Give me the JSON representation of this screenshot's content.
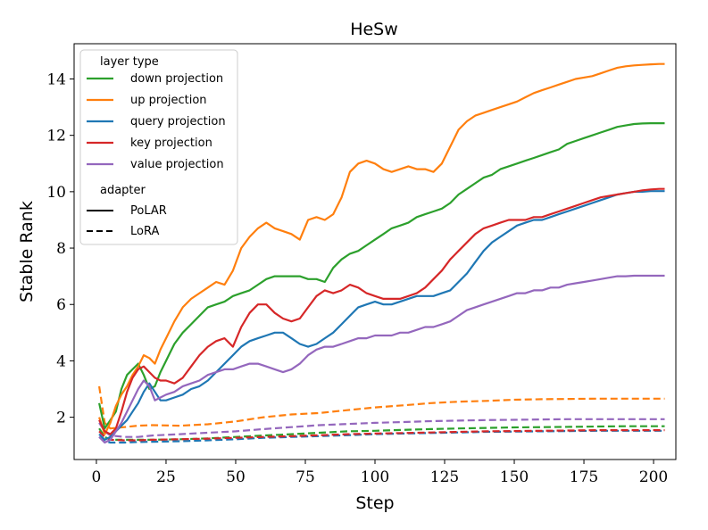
{
  "chart_data": {
    "type": "line",
    "title": "HeSw",
    "xlabel": "Step",
    "ylabel": "Stable Rank",
    "xlim": [
      -8,
      208
    ],
    "ylim": [
      0.5,
      15.25
    ],
    "xticks": [
      0,
      25,
      50,
      75,
      100,
      125,
      150,
      175,
      200
    ],
    "xtick_labels": [
      "0",
      "25",
      "50",
      "75",
      "100",
      "125",
      "150",
      "175",
      "200"
    ],
    "yticks": [
      2,
      4,
      6,
      8,
      10,
      12,
      14
    ],
    "ytick_labels": [
      "2",
      "4",
      "6",
      "8",
      "10",
      "12",
      "14"
    ],
    "grid": false,
    "legend_position": "top-left",
    "legend": {
      "layer_title": "layer type",
      "layers": [
        {
          "label": "down projection",
          "color": "#2ca02c"
        },
        {
          "label": "up projection",
          "color": "#ff7f0e"
        },
        {
          "label": "query projection",
          "color": "#1f77b4"
        },
        {
          "label": "key projection",
          "color": "#d62728"
        },
        {
          "label": "value projection",
          "color": "#9467bd"
        }
      ],
      "adapter_title": "adapter",
      "adapters": [
        {
          "label": "PoLAR",
          "style": "solid"
        },
        {
          "label": "LoRA",
          "style": "dashed"
        }
      ]
    },
    "series": [
      {
        "name": "down projection",
        "adapter": "PoLAR",
        "color": "#2ca02c",
        "style": "solid",
        "x": [
          1,
          3,
          5,
          7,
          9,
          11,
          13,
          15,
          17,
          19,
          21,
          23,
          25,
          28,
          31,
          34,
          37,
          40,
          43,
          46,
          49,
          52,
          55,
          58,
          61,
          64,
          67,
          70,
          73,
          76,
          79,
          82,
          85,
          88,
          91,
          94,
          97,
          100,
          103,
          106,
          109,
          112,
          115,
          118,
          121,
          124,
          127,
          130,
          133,
          136,
          139,
          142,
          145,
          148,
          151,
          154,
          157,
          160,
          163,
          166,
          169,
          172,
          175,
          178,
          181,
          184,
          187,
          190,
          193,
          196,
          199,
          202,
          204
        ],
        "y": [
          2.5,
          1.6,
          1.9,
          2.2,
          3.0,
          3.5,
          3.7,
          3.9,
          3.5,
          3.0,
          3.1,
          3.6,
          4.0,
          4.6,
          5.0,
          5.3,
          5.6,
          5.9,
          6.0,
          6.1,
          6.3,
          6.4,
          6.5,
          6.7,
          6.9,
          7.0,
          7.0,
          7.0,
          7.0,
          6.9,
          6.9,
          6.8,
          7.3,
          7.6,
          7.8,
          7.9,
          8.1,
          8.3,
          8.5,
          8.7,
          8.8,
          8.9,
          9.1,
          9.2,
          9.3,
          9.4,
          9.6,
          9.9,
          10.1,
          10.3,
          10.5,
          10.6,
          10.8,
          10.9,
          11.0,
          11.1,
          11.2,
          11.3,
          11.4,
          11.5,
          11.7,
          11.8,
          11.9,
          12.0,
          12.1,
          12.2,
          12.3,
          12.35,
          12.4,
          12.42,
          12.43,
          12.43,
          12.43
        ]
      },
      {
        "name": "up projection",
        "adapter": "PoLAR",
        "color": "#ff7f0e",
        "style": "solid",
        "x": [
          1,
          3,
          5,
          7,
          9,
          11,
          13,
          15,
          17,
          19,
          21,
          23,
          25,
          28,
          31,
          34,
          37,
          40,
          43,
          46,
          49,
          52,
          55,
          58,
          61,
          64,
          67,
          70,
          73,
          76,
          79,
          82,
          85,
          88,
          91,
          94,
          97,
          100,
          103,
          106,
          109,
          112,
          115,
          118,
          121,
          124,
          127,
          130,
          133,
          136,
          139,
          142,
          145,
          148,
          151,
          154,
          157,
          160,
          163,
          166,
          169,
          172,
          175,
          178,
          181,
          184,
          187,
          190,
          193,
          196,
          199,
          202,
          204
        ],
        "y": [
          2.0,
          1.4,
          1.8,
          2.4,
          2.8,
          3.1,
          3.5,
          3.8,
          4.2,
          4.1,
          3.9,
          4.4,
          4.8,
          5.4,
          5.9,
          6.2,
          6.4,
          6.6,
          6.8,
          6.7,
          7.2,
          8.0,
          8.4,
          8.7,
          8.9,
          8.7,
          8.6,
          8.5,
          8.3,
          9.0,
          9.1,
          9.0,
          9.2,
          9.8,
          10.7,
          11.0,
          11.1,
          11.0,
          10.8,
          10.7,
          10.8,
          10.9,
          10.8,
          10.8,
          10.7,
          11.0,
          11.6,
          12.2,
          12.5,
          12.7,
          12.8,
          12.9,
          13.0,
          13.1,
          13.2,
          13.35,
          13.5,
          13.6,
          13.7,
          13.8,
          13.9,
          14.0,
          14.05,
          14.1,
          14.2,
          14.3,
          14.4,
          14.45,
          14.48,
          14.5,
          14.52,
          14.53,
          14.53
        ]
      },
      {
        "name": "query projection",
        "adapter": "PoLAR",
        "color": "#1f77b4",
        "style": "solid",
        "x": [
          1,
          3,
          5,
          7,
          9,
          11,
          13,
          15,
          17,
          19,
          21,
          23,
          25,
          28,
          31,
          34,
          37,
          40,
          43,
          46,
          49,
          52,
          55,
          58,
          61,
          64,
          67,
          70,
          73,
          76,
          79,
          82,
          85,
          88,
          91,
          94,
          97,
          100,
          103,
          106,
          109,
          112,
          115,
          118,
          121,
          124,
          127,
          130,
          133,
          136,
          139,
          142,
          145,
          148,
          151,
          154,
          157,
          160,
          163,
          166,
          169,
          172,
          175,
          178,
          181,
          184,
          187,
          190,
          193,
          196,
          199,
          202,
          204
        ],
        "y": [
          1.4,
          1.2,
          1.3,
          1.5,
          1.7,
          1.9,
          2.2,
          2.5,
          2.9,
          3.2,
          2.9,
          2.6,
          2.6,
          2.7,
          2.8,
          3.0,
          3.1,
          3.3,
          3.6,
          3.9,
          4.2,
          4.5,
          4.7,
          4.8,
          4.9,
          5.0,
          5.0,
          4.8,
          4.6,
          4.5,
          4.6,
          4.8,
          5.0,
          5.3,
          5.6,
          5.9,
          6.0,
          6.1,
          6.0,
          6.0,
          6.1,
          6.2,
          6.3,
          6.3,
          6.3,
          6.4,
          6.5,
          6.8,
          7.1,
          7.5,
          7.9,
          8.2,
          8.4,
          8.6,
          8.8,
          8.9,
          9.0,
          9.0,
          9.1,
          9.2,
          9.3,
          9.4,
          9.5,
          9.6,
          9.7,
          9.8,
          9.9,
          9.95,
          10.0,
          10.0,
          10.02,
          10.02,
          10.02
        ]
      },
      {
        "name": "key projection",
        "adapter": "PoLAR",
        "color": "#d62728",
        "style": "solid",
        "x": [
          1,
          3,
          5,
          7,
          9,
          11,
          13,
          15,
          17,
          19,
          21,
          23,
          25,
          28,
          31,
          34,
          37,
          40,
          43,
          46,
          49,
          52,
          55,
          58,
          61,
          64,
          67,
          70,
          73,
          76,
          79,
          82,
          85,
          88,
          91,
          94,
          97,
          100,
          103,
          106,
          109,
          112,
          115,
          118,
          121,
          124,
          127,
          130,
          133,
          136,
          139,
          142,
          145,
          148,
          151,
          154,
          157,
          160,
          163,
          166,
          169,
          172,
          175,
          178,
          181,
          184,
          187,
          190,
          193,
          196,
          199,
          202,
          204
        ],
        "y": [
          1.9,
          1.5,
          1.4,
          1.6,
          2.2,
          2.9,
          3.4,
          3.7,
          3.8,
          3.6,
          3.4,
          3.3,
          3.3,
          3.2,
          3.4,
          3.8,
          4.2,
          4.5,
          4.7,
          4.8,
          4.5,
          5.2,
          5.7,
          6.0,
          6.0,
          5.7,
          5.5,
          5.4,
          5.5,
          5.9,
          6.3,
          6.5,
          6.4,
          6.5,
          6.7,
          6.6,
          6.4,
          6.3,
          6.2,
          6.2,
          6.2,
          6.3,
          6.4,
          6.6,
          6.9,
          7.2,
          7.6,
          7.9,
          8.2,
          8.5,
          8.7,
          8.8,
          8.9,
          9.0,
          9.0,
          9.0,
          9.1,
          9.1,
          9.2,
          9.3,
          9.4,
          9.5,
          9.6,
          9.7,
          9.8,
          9.85,
          9.9,
          9.95,
          10.0,
          10.05,
          10.08,
          10.1,
          10.1
        ]
      },
      {
        "name": "value projection",
        "adapter": "PoLAR",
        "color": "#9467bd",
        "style": "solid",
        "x": [
          1,
          3,
          5,
          7,
          9,
          11,
          13,
          15,
          17,
          19,
          21,
          23,
          25,
          28,
          31,
          34,
          37,
          40,
          43,
          46,
          49,
          52,
          55,
          58,
          61,
          64,
          67,
          70,
          73,
          76,
          79,
          82,
          85,
          88,
          91,
          94,
          97,
          100,
          103,
          106,
          109,
          112,
          115,
          118,
          121,
          124,
          127,
          130,
          133,
          136,
          139,
          142,
          145,
          148,
          151,
          154,
          157,
          160,
          163,
          166,
          169,
          172,
          175,
          178,
          181,
          184,
          187,
          190,
          193,
          196,
          199,
          202,
          204
        ],
        "y": [
          1.3,
          1.1,
          1.2,
          1.5,
          1.8,
          2.2,
          2.6,
          3.0,
          3.3,
          3.1,
          2.6,
          2.7,
          2.8,
          2.9,
          3.1,
          3.2,
          3.3,
          3.5,
          3.6,
          3.7,
          3.7,
          3.8,
          3.9,
          3.9,
          3.8,
          3.7,
          3.6,
          3.7,
          3.9,
          4.2,
          4.4,
          4.5,
          4.5,
          4.6,
          4.7,
          4.8,
          4.8,
          4.9,
          4.9,
          4.9,
          5.0,
          5.0,
          5.1,
          5.2,
          5.2,
          5.3,
          5.4,
          5.6,
          5.8,
          5.9,
          6.0,
          6.1,
          6.2,
          6.3,
          6.4,
          6.4,
          6.5,
          6.5,
          6.6,
          6.6,
          6.7,
          6.75,
          6.8,
          6.85,
          6.9,
          6.95,
          7.0,
          7.0,
          7.02,
          7.02,
          7.02,
          7.02,
          7.02
        ]
      },
      {
        "name": "down projection",
        "adapter": "LoRA",
        "color": "#2ca02c",
        "style": "dashed",
        "x": [
          1,
          3,
          5,
          10,
          15,
          20,
          30,
          40,
          50,
          60,
          70,
          80,
          90,
          100,
          110,
          120,
          130,
          140,
          150,
          160,
          170,
          180,
          190,
          200,
          204
        ],
        "y": [
          1.6,
          1.3,
          1.2,
          1.2,
          1.2,
          1.2,
          1.22,
          1.25,
          1.3,
          1.35,
          1.4,
          1.45,
          1.5,
          1.52,
          1.55,
          1.58,
          1.6,
          1.62,
          1.64,
          1.65,
          1.66,
          1.67,
          1.68,
          1.68,
          1.68
        ]
      },
      {
        "name": "up projection",
        "adapter": "LoRA",
        "color": "#ff7f0e",
        "style": "dashed",
        "x": [
          1,
          3,
          5,
          10,
          15,
          20,
          30,
          40,
          50,
          60,
          70,
          80,
          90,
          100,
          110,
          120,
          130,
          140,
          150,
          160,
          170,
          180,
          190,
          200,
          204
        ],
        "y": [
          3.1,
          1.8,
          1.6,
          1.65,
          1.7,
          1.72,
          1.7,
          1.75,
          1.85,
          2.0,
          2.1,
          2.15,
          2.25,
          2.35,
          2.42,
          2.5,
          2.55,
          2.58,
          2.62,
          2.64,
          2.65,
          2.66,
          2.66,
          2.66,
          2.66
        ]
      },
      {
        "name": "query projection",
        "adapter": "LoRA",
        "color": "#1f77b4",
        "style": "dashed",
        "x": [
          1,
          3,
          5,
          10,
          15,
          20,
          30,
          40,
          50,
          60,
          70,
          80,
          90,
          100,
          110,
          120,
          130,
          140,
          150,
          160,
          170,
          180,
          190,
          200,
          204
        ],
        "y": [
          1.3,
          1.15,
          1.1,
          1.1,
          1.12,
          1.13,
          1.15,
          1.18,
          1.22,
          1.27,
          1.3,
          1.33,
          1.36,
          1.4,
          1.42,
          1.44,
          1.46,
          1.48,
          1.49,
          1.5,
          1.51,
          1.52,
          1.52,
          1.52,
          1.52
        ]
      },
      {
        "name": "key projection",
        "adapter": "LoRA",
        "color": "#d62728",
        "style": "dashed",
        "x": [
          1,
          3,
          5,
          10,
          15,
          20,
          30,
          40,
          50,
          60,
          70,
          80,
          90,
          100,
          110,
          120,
          130,
          140,
          150,
          160,
          170,
          180,
          190,
          200,
          204
        ],
        "y": [
          1.5,
          1.3,
          1.2,
          1.18,
          1.18,
          1.2,
          1.22,
          1.24,
          1.27,
          1.3,
          1.33,
          1.36,
          1.4,
          1.42,
          1.44,
          1.46,
          1.48,
          1.5,
          1.51,
          1.52,
          1.53,
          1.54,
          1.54,
          1.54,
          1.54
        ]
      },
      {
        "name": "value projection",
        "adapter": "LoRA",
        "color": "#9467bd",
        "style": "dashed",
        "x": [
          1,
          3,
          5,
          10,
          15,
          20,
          30,
          40,
          50,
          60,
          70,
          80,
          90,
          100,
          110,
          120,
          130,
          140,
          150,
          160,
          170,
          180,
          190,
          200,
          204
        ],
        "y": [
          1.8,
          1.5,
          1.35,
          1.3,
          1.3,
          1.35,
          1.4,
          1.45,
          1.5,
          1.58,
          1.65,
          1.72,
          1.76,
          1.8,
          1.83,
          1.86,
          1.88,
          1.9,
          1.91,
          1.92,
          1.93,
          1.93,
          1.93,
          1.93,
          1.93
        ]
      }
    ]
  }
}
